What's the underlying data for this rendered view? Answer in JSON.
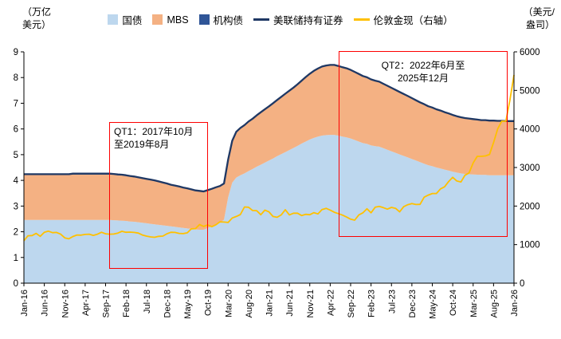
{
  "chart_data": {
    "type": "area",
    "stacked": true,
    "title": "",
    "left_axis": {
      "unit_lines": [
        "（万亿",
        "美元）"
      ],
      "min": 0,
      "max": 9,
      "ticks": [
        0,
        1,
        2,
        3,
        4,
        5,
        6,
        7,
        8,
        9
      ]
    },
    "right_axis": {
      "unit_lines": [
        "（美元/",
        "盎司）"
      ],
      "min": 0,
      "max": 6000,
      "ticks": [
        0,
        1000,
        2000,
        3000,
        4000,
        5000,
        6000
      ]
    },
    "x_axis": {
      "tick_labels": [
        "Jan-16",
        "Jun-16",
        "Nov-16",
        "Apr-17",
        "Sep-17",
        "Feb-18",
        "Jul-18",
        "Dec-18",
        "May-19",
        "Oct-19",
        "Mar-20",
        "Aug-20",
        "Jan-21",
        "Jun-21",
        "Nov-21",
        "Apr-22",
        "Sep-22",
        "Feb-23",
        "Jul-23",
        "Dec-23",
        "May-24",
        "Oct-24",
        "Mar-25",
        "Aug-25",
        "Jan-26"
      ],
      "tick_indices": [
        0,
        5,
        10,
        15,
        20,
        25,
        30,
        35,
        40,
        45,
        50,
        55,
        60,
        65,
        70,
        75,
        80,
        85,
        90,
        95,
        100,
        105,
        110,
        115,
        120
      ]
    },
    "legend": [
      {
        "label": "国债",
        "color": "#BDD7EE",
        "shape": "square"
      },
      {
        "label": "MBS",
        "color": "#F4B183",
        "shape": "square"
      },
      {
        "label": "机构债",
        "color": "#2F5597",
        "shape": "square"
      },
      {
        "label": "美联储持有证券",
        "color": "#1F3864",
        "shape": "line"
      },
      {
        "label": "伦敦金现（右轴）",
        "color": "#FFC000",
        "shape": "line"
      }
    ],
    "series": [
      {
        "name": "国债",
        "axis": "left",
        "color": "#BDD7EE",
        "values": [
          2.46,
          2.46,
          2.46,
          2.46,
          2.46,
          2.46,
          2.46,
          2.46,
          2.46,
          2.46,
          2.46,
          2.46,
          2.46,
          2.46,
          2.46,
          2.46,
          2.46,
          2.46,
          2.46,
          2.46,
          2.46,
          2.46,
          2.45,
          2.44,
          2.43,
          2.42,
          2.4,
          2.39,
          2.37,
          2.35,
          2.33,
          2.31,
          2.29,
          2.27,
          2.25,
          2.23,
          2.21,
          2.19,
          2.17,
          2.15,
          2.13,
          2.11,
          2.09,
          2.08,
          2.08,
          2.14,
          2.21,
          2.28,
          2.35,
          2.47,
          3.34,
          3.91,
          4.11,
          4.2,
          4.27,
          4.36,
          4.44,
          4.53,
          4.61,
          4.69,
          4.77,
          4.85,
          4.94,
          5.02,
          5.1,
          5.18,
          5.26,
          5.34,
          5.43,
          5.51,
          5.59,
          5.65,
          5.7,
          5.74,
          5.76,
          5.77,
          5.77,
          5.74,
          5.7,
          5.67,
          5.63,
          5.57,
          5.51,
          5.45,
          5.42,
          5.36,
          5.33,
          5.31,
          5.25,
          5.19,
          5.13,
          5.07,
          5.01,
          4.95,
          4.89,
          4.83,
          4.77,
          4.71,
          4.65,
          4.59,
          4.55,
          4.5,
          4.46,
          4.42,
          4.38,
          4.34,
          4.3,
          4.27,
          4.25,
          4.24,
          4.23,
          4.22,
          4.21,
          4.21,
          4.2,
          4.2,
          4.2,
          4.2,
          4.2,
          4.2,
          4.2
        ]
      },
      {
        "name": "MBS",
        "axis": "left",
        "color": "#F4B183",
        "values": [
          1.75,
          1.75,
          1.75,
          1.75,
          1.75,
          1.75,
          1.75,
          1.75,
          1.75,
          1.75,
          1.75,
          1.75,
          1.77,
          1.77,
          1.77,
          1.77,
          1.77,
          1.77,
          1.77,
          1.77,
          1.77,
          1.77,
          1.77,
          1.76,
          1.76,
          1.75,
          1.74,
          1.73,
          1.72,
          1.71,
          1.7,
          1.69,
          1.68,
          1.66,
          1.64,
          1.62,
          1.6,
          1.59,
          1.57,
          1.55,
          1.54,
          1.52,
          1.5,
          1.49,
          1.47,
          1.46,
          1.44,
          1.43,
          1.42,
          1.4,
          1.46,
          1.62,
          1.77,
          1.83,
          1.87,
          1.92,
          1.95,
          1.99,
          2.03,
          2.07,
          2.1,
          2.14,
          2.18,
          2.22,
          2.26,
          2.3,
          2.34,
          2.39,
          2.44,
          2.5,
          2.55,
          2.6,
          2.64,
          2.68,
          2.7,
          2.71,
          2.71,
          2.7,
          2.69,
          2.68,
          2.66,
          2.64,
          2.62,
          2.6,
          2.58,
          2.56,
          2.54,
          2.52,
          2.5,
          2.48,
          2.46,
          2.44,
          2.42,
          2.4,
          2.38,
          2.36,
          2.34,
          2.32,
          2.31,
          2.29,
          2.28,
          2.26,
          2.25,
          2.23,
          2.22,
          2.2,
          2.19,
          2.18,
          2.17,
          2.16,
          2.15,
          2.14,
          2.13,
          2.13,
          2.12,
          2.12,
          2.11,
          2.11,
          2.1,
          2.1,
          2.1
        ]
      },
      {
        "name": "机构债",
        "axis": "left",
        "color": "#2F5597",
        "values": [
          0.03,
          0.03,
          0.03,
          0.03,
          0.03,
          0.03,
          0.03,
          0.03,
          0.03,
          0.03,
          0.03,
          0.03,
          0.03,
          0.03,
          0.03,
          0.03,
          0.03,
          0.03,
          0.03,
          0.03,
          0.03,
          0.03,
          0.03,
          0.03,
          0.03,
          0.03,
          0.03,
          0.03,
          0.03,
          0.03,
          0.03,
          0.03,
          0.03,
          0.03,
          0.03,
          0.03,
          0.02,
          0.02,
          0.02,
          0.02,
          0.02,
          0.02,
          0.02,
          0.02,
          0.02,
          0.02,
          0.02,
          0.02,
          0.01,
          0.01,
          0.01,
          0.01,
          0.01,
          0.01,
          0.01,
          0.01,
          0.01,
          0.01,
          0.01,
          0.01,
          0.01,
          0.01,
          0.01,
          0.01,
          0.01,
          0.01,
          0.01,
          0.01,
          0.01,
          0.01,
          0.01,
          0.01,
          0.01,
          0.01,
          0.01,
          0.01,
          0.01,
          0.01,
          0.01,
          0.01,
          0.01,
          0.01,
          0.01,
          0.01,
          0.01,
          0.01,
          0.01,
          0.01,
          0.01,
          0.01,
          0.01,
          0.01,
          0.01,
          0.01,
          0.01,
          0.01,
          0.005,
          0.005,
          0.005,
          0.005,
          0.005,
          0.005,
          0.005,
          0.005,
          0.005,
          0.005,
          0.005,
          0.005,
          0.005,
          0.005,
          0.005,
          0.005,
          0.005,
          0.005,
          0.005,
          0.005,
          0.005,
          0.005,
          0.005,
          0.005,
          0.005
        ]
      }
    ],
    "total_line": {
      "name": "美联储持有证券",
      "color": "#1F3864",
      "note": "sum of stacked series"
    },
    "gold": {
      "name": "伦敦金现（右轴）",
      "axis": "right",
      "color": "#FFC000",
      "values": [
        1100,
        1230,
        1235,
        1290,
        1215,
        1320,
        1350,
        1310,
        1315,
        1270,
        1175,
        1150,
        1210,
        1250,
        1245,
        1265,
        1270,
        1240,
        1270,
        1320,
        1280,
        1270,
        1275,
        1300,
        1345,
        1320,
        1325,
        1315,
        1300,
        1250,
        1220,
        1200,
        1190,
        1215,
        1220,
        1280,
        1320,
        1315,
        1290,
        1285,
        1305,
        1410,
        1415,
        1520,
        1470,
        1510,
        1465,
        1515,
        1590,
        1585,
        1575,
        1690,
        1730,
        1780,
        1975,
        1970,
        1885,
        1880,
        1775,
        1895,
        1850,
        1730,
        1710,
        1770,
        1905,
        1770,
        1815,
        1815,
        1755,
        1785,
        1775,
        1830,
        1795,
        1910,
        1940,
        1895,
        1840,
        1805,
        1765,
        1715,
        1660,
        1635,
        1770,
        1825,
        1930,
        1825,
        1970,
        1990,
        1960,
        1920,
        1965,
        1940,
        1850,
        1985,
        2035,
        2065,
        2040,
        2045,
        2230,
        2285,
        2325,
        2325,
        2445,
        2500,
        2635,
        2745,
        2650,
        2625,
        2800,
        2860,
        3120,
        3290,
        3290,
        3300,
        3340,
        3650,
        4000,
        4200,
        4200,
        4750,
        5400
      ]
    },
    "annotations": [
      {
        "id": "QT1",
        "lines": [
          "QT1：2017年10月",
          "至2019年8月"
        ]
      },
      {
        "id": "QT2",
        "lines": [
          "QT2：2022年6月至",
          "2025年12月"
        ]
      }
    ],
    "highlight_color": "#FE0000"
  }
}
